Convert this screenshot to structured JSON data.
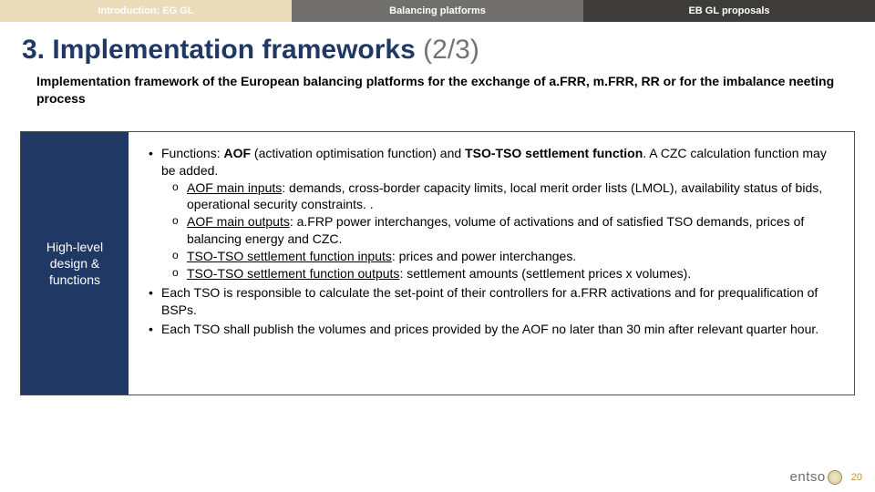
{
  "tabs": [
    {
      "label": "Introduction: EG GL",
      "bg": "#ebdcb9"
    },
    {
      "label": "Balancing platforms",
      "bg": "#71706e"
    },
    {
      "label": "EB GL proposals",
      "bg": "#3d3c3a"
    }
  ],
  "title_main": "3. Implementation frameworks ",
  "title_paren": "(2/3)",
  "subtitle": "Implementation framework of the European balancing platforms for the exchange of a.FRR, m.FRR, RR or for the imbalance neeting process",
  "box_left": "High-level design & functions",
  "bullets": {
    "b1_pre": "Functions: ",
    "b1_bold1": "AOF",
    "b1_mid1": " (activation optimisation function) and ",
    "b1_bold2": "TSO-TSO settlement function",
    "b1_post": ". A CZC calculation function may be added.",
    "b1s1_label": "AOF main inputs",
    "b1s1_text": ": demands, cross-border capacity limits, local merit order lists (LMOL), availability status of bids, operational security constraints. .",
    "b1s2_label": "AOF main outputs",
    "b1s2_text": ": a.FRP power interchanges, volume of activations and of satisfied TSO demands, prices of balancing energy and CZC.",
    "b1s3_label": "TSO-TSO settlement function inputs",
    "b1s3_text": ": prices and power interchanges.",
    "b1s4_label": "TSO-TSO settlement function outputs",
    "b1s4_text": ": settlement amounts (settlement prices x volumes).",
    "b2": "Each TSO is responsible to calculate the set-point of their controllers for a.FRR activations and for prequalification of BSPs.",
    "b3": "Each TSO shall publish the volumes and prices provided by the AOF no later than 30 min after relevant quarter hour."
  },
  "logo_text": "entso",
  "page_number": "20",
  "colors": {
    "title": "#203864",
    "title_paren": "#767171",
    "box_left_bg": "#203864"
  }
}
